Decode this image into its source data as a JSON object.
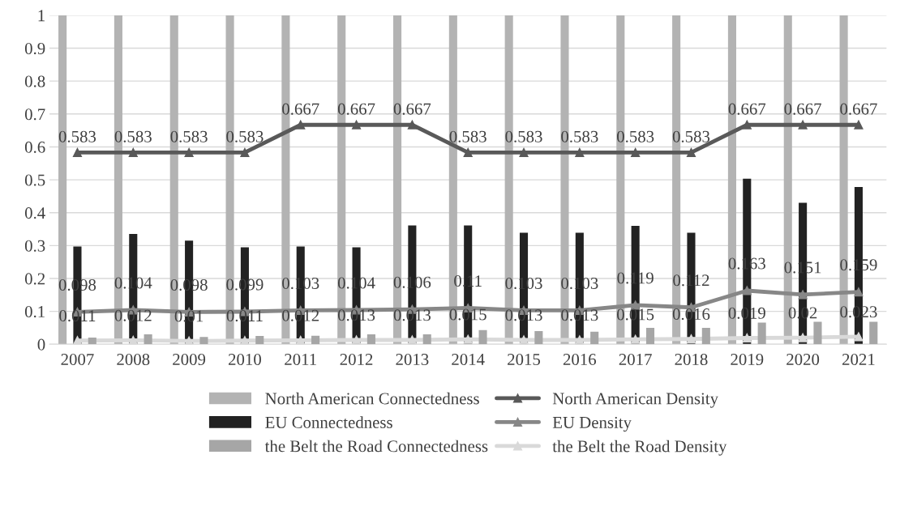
{
  "chart_data": {
    "type": "bar",
    "categories": [
      "2007",
      "2008",
      "2009",
      "2010",
      "2011",
      "2012",
      "2013",
      "2014",
      "2015",
      "2016",
      "2017",
      "2018",
      "2019",
      "2020",
      "2021"
    ],
    "series": [
      {
        "name": "North American Connectedness",
        "color": "#b3b3b3",
        "values": [
          1,
          1,
          1,
          1,
          1,
          1,
          1,
          1,
          1,
          1,
          1,
          1,
          1,
          1,
          1
        ]
      },
      {
        "name": "EU Connectedness",
        "color": "#222222",
        "values": [
          0.297,
          0.335,
          0.315,
          0.295,
          0.297,
          0.295,
          0.361,
          0.361,
          0.339,
          0.339,
          0.36,
          0.339,
          0.503,
          0.43,
          0.478
        ]
      },
      {
        "name": "the Belt the Road Connectedness",
        "color": "#a6a6a6",
        "values": [
          0.02,
          0.03,
          0.022,
          0.025,
          0.026,
          0.03,
          0.03,
          0.043,
          0.04,
          0.038,
          0.05,
          0.05,
          0.066,
          0.068,
          0.068
        ]
      },
      {
        "name": "North American Density",
        "type": "line",
        "color": "#595959",
        "values": [
          0.583,
          0.583,
          0.583,
          0.583,
          0.667,
          0.667,
          0.667,
          0.583,
          0.583,
          0.583,
          0.583,
          0.583,
          0.667,
          0.667,
          0.667
        ],
        "value_labels": [
          "0.583",
          "0.583",
          "0.583",
          "0.583",
          "0.667",
          "0.667",
          "0.667",
          "0.583",
          "0.583",
          "0.583",
          "0.583",
          "0.583",
          "0.667",
          "0.667",
          "0.667"
        ]
      },
      {
        "name": "EU Density",
        "type": "line",
        "color": "#878787",
        "values": [
          0.098,
          0.104,
          0.098,
          0.099,
          0.103,
          0.104,
          0.106,
          0.11,
          0.103,
          0.103,
          0.119,
          0.112,
          0.163,
          0.151,
          0.159
        ],
        "value_labels": [
          "0.098",
          "0.104",
          "0.098",
          "0.099",
          "0.103",
          "0.104",
          "0.106",
          "0.11",
          "0.103",
          "0.103",
          "0.119",
          "0.112",
          "0.163",
          "0.151",
          "0.159"
        ]
      },
      {
        "name": "the Belt the Road Density",
        "type": "line",
        "color": "#d9d9d9",
        "values": [
          0.011,
          0.012,
          0.01,
          0.011,
          0.012,
          0.013,
          0.013,
          0.015,
          0.013,
          0.013,
          0.015,
          0.016,
          0.019,
          0.02,
          0.023
        ],
        "value_labels": [
          "0.011",
          "0.012",
          "0.01",
          "0.011",
          "0.012",
          "0.013",
          "0.013",
          "0.015",
          "0.013",
          "0.013",
          "0.015",
          "0.016",
          "0.019",
          "0.02",
          "0.023"
        ]
      }
    ],
    "ylim": [
      0,
      1
    ],
    "yticks": [
      0,
      0.1,
      0.2,
      0.3,
      0.4,
      0.5,
      0.6,
      0.7,
      0.8,
      0.9,
      1
    ],
    "grid": "y",
    "legend": "bottom",
    "marker": "triangle",
    "line_style": "solid"
  }
}
